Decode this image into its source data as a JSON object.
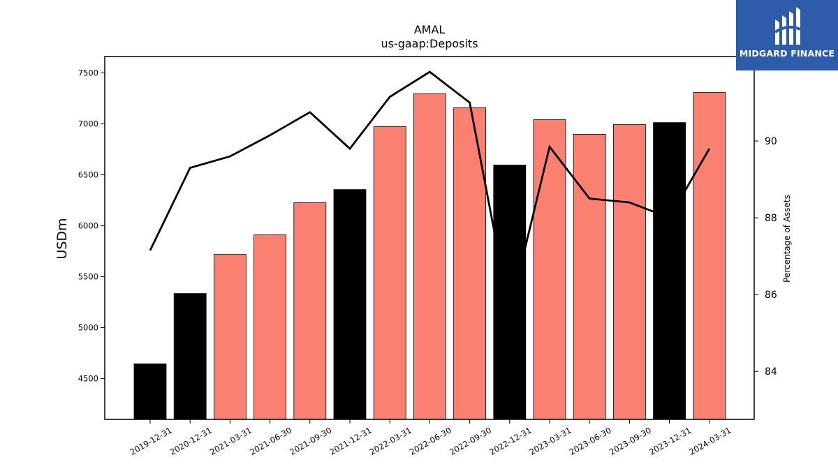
{
  "logo": {
    "text": "MIDGARD FINANCE",
    "icon": "midgard-logo-icon",
    "color": "#2f5bab"
  },
  "chart_data": {
    "type": "bar",
    "title": "AMAL",
    "subtitle": "us-gaap:Deposits",
    "ylabel": "USDm",
    "y2label": "Percentage of Assets",
    "categories": [
      "2019-12-31",
      "2020-12-31",
      "2021-03-31",
      "2021-06-30",
      "2021-09-30",
      "2021-12-31",
      "2022-03-31",
      "2022-06-30",
      "2022-09-30",
      "2022-12-31",
      "2023-03-31",
      "2023-06-30",
      "2023-09-30",
      "2023-12-31",
      "2024-03-31"
    ],
    "values": [
      4645,
      5335,
      5718,
      5910,
      6225,
      6355,
      6972,
      7295,
      7157,
      6595,
      7040,
      6897,
      6992,
      7012,
      7307
    ],
    "bar_colors": [
      "#000000",
      "#000000",
      "#fa8072",
      "#fa8072",
      "#fa8072",
      "#000000",
      "#fa8072",
      "#fa8072",
      "#fa8072",
      "#000000",
      "#fa8072",
      "#fa8072",
      "#fa8072",
      "#000000",
      "#fa8072"
    ],
    "line_series": {
      "values": [
        87.15,
        89.3,
        89.6,
        90.15,
        90.75,
        89.8,
        91.15,
        91.8,
        91.0,
        85.55,
        89.85,
        88.5,
        88.4,
        88.0,
        89.8
      ]
    },
    "ylim": [
      4100,
      7660
    ],
    "y2lim": [
      82.75,
      92.2
    ],
    "yticks": [
      4500,
      5000,
      5500,
      6000,
      6500,
      7000,
      7500
    ],
    "y2ticks": [
      84,
      86,
      88,
      90
    ],
    "grid": false,
    "legend": "none"
  }
}
